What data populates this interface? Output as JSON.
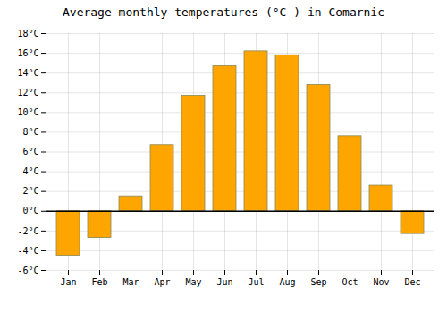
{
  "chart_data": {
    "type": "bar",
    "title": "Average monthly temperatures (°C ) in Comarnic",
    "categories": [
      "Jan",
      "Feb",
      "Mar",
      "Apr",
      "May",
      "Jun",
      "Jul",
      "Aug",
      "Sep",
      "Oct",
      "Nov",
      "Dec"
    ],
    "values": [
      -4.5,
      -2.7,
      1.5,
      6.7,
      11.7,
      14.7,
      16.2,
      15.8,
      12.8,
      7.6,
      2.6,
      -2.3
    ],
    "color": "#FFA500",
    "ylim": [
      -6,
      18
    ],
    "yticks": [
      {
        "value": -6,
        "label": "-6°C"
      },
      {
        "value": -4,
        "label": "-4°C"
      },
      {
        "value": -2,
        "label": "-2°C"
      },
      {
        "value": 0,
        "label": "0°C"
      },
      {
        "value": 2,
        "label": "2°C"
      },
      {
        "value": 4,
        "label": "4°C"
      },
      {
        "value": 6,
        "label": "6°C"
      },
      {
        "value": 8,
        "label": "8°C"
      },
      {
        "value": 10,
        "label": "10°C"
      },
      {
        "value": 12,
        "label": "12°C"
      },
      {
        "value": 14,
        "label": "14°C"
      },
      {
        "value": 16,
        "label": "16°C"
      },
      {
        "value": 18,
        "label": "18°C"
      }
    ],
    "grid": true
  }
}
